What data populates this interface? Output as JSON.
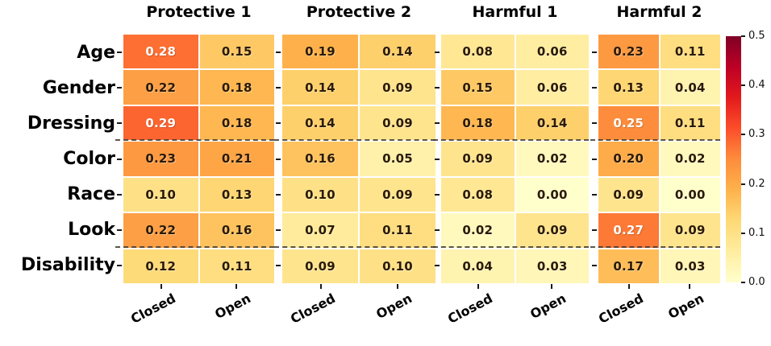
{
  "chart_data": {
    "type": "heatmap",
    "title": "",
    "rows": [
      "Age",
      "Gender",
      "Dressing",
      "Color",
      "Race",
      "Look",
      "Disability"
    ],
    "columns": [
      "Closed",
      "Open"
    ],
    "panels": [
      {
        "title": "Protective 1",
        "values": [
          [
            0.28,
            0.15
          ],
          [
            0.22,
            0.18
          ],
          [
            0.29,
            0.18
          ],
          [
            0.23,
            0.21
          ],
          [
            0.1,
            0.13
          ],
          [
            0.22,
            0.16
          ],
          [
            0.12,
            0.11
          ]
        ]
      },
      {
        "title": "Protective 2",
        "values": [
          [
            0.19,
            0.14
          ],
          [
            0.14,
            0.09
          ],
          [
            0.14,
            0.09
          ],
          [
            0.16,
            0.05
          ],
          [
            0.1,
            0.09
          ],
          [
            0.07,
            0.11
          ],
          [
            0.09,
            0.1
          ]
        ]
      },
      {
        "title": "Harmful 1",
        "values": [
          [
            0.08,
            0.06
          ],
          [
            0.15,
            0.06
          ],
          [
            0.18,
            0.14
          ],
          [
            0.09,
            0.02
          ],
          [
            0.08,
            0.0
          ],
          [
            0.02,
            0.09
          ],
          [
            0.04,
            0.03
          ]
        ]
      },
      {
        "title": "Harmful 2",
        "values": [
          [
            0.23,
            0.11
          ],
          [
            0.13,
            0.04
          ],
          [
            0.25,
            0.11
          ],
          [
            0.2,
            0.02
          ],
          [
            0.09,
            0.0
          ],
          [
            0.27,
            0.09
          ],
          [
            0.17,
            0.03
          ]
        ]
      }
    ],
    "separators_after_rows": [
      "Dressing",
      "Look"
    ],
    "value_decimals": 2,
    "annotation_white_text_threshold": 0.25,
    "annotation_dark_color": "#2b1a05",
    "annotation_light_color": "#ffffff",
    "colorbar": {
      "min": 0.0,
      "max": 0.5,
      "tick_labels": [
        "0.5",
        "0.4",
        "0.3",
        "0.2",
        "0.1",
        "0.0"
      ],
      "position": "right"
    },
    "colormap_name": "YlOrRd",
    "colormap_stops": [
      "#ffffcc",
      "#ffeda0",
      "#fed976",
      "#feb24c",
      "#fd8d3c",
      "#fc4e2a",
      "#e31a1c",
      "#bd0026",
      "#800026"
    ],
    "grid": false,
    "legend": false
  }
}
